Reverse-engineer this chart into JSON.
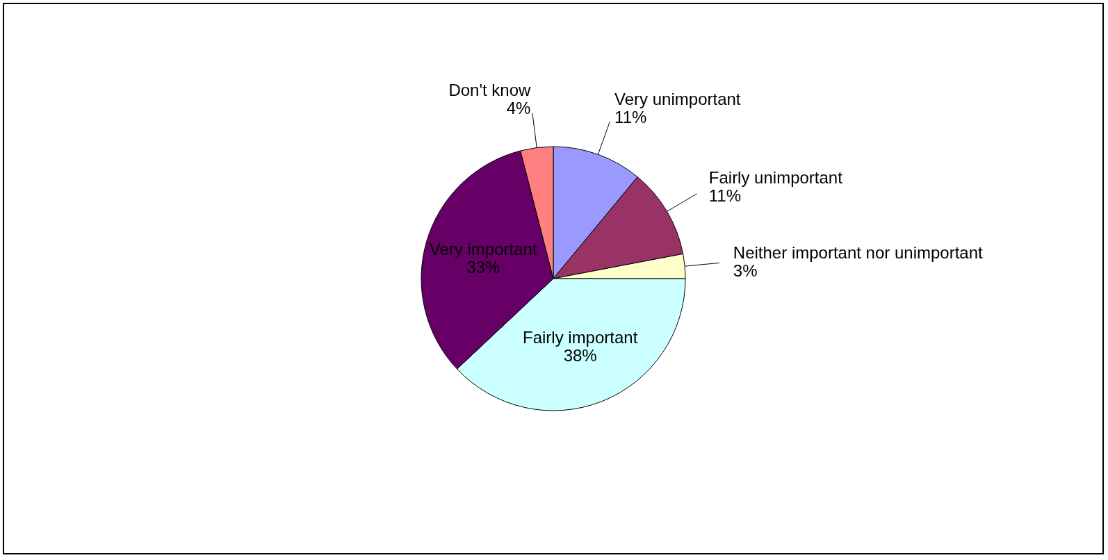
{
  "chart_data": {
    "type": "pie",
    "categories": [
      "Very unimportant",
      "Fairly unimportant",
      "Neither important nor unimportant",
      "Fairly important",
      "Very important",
      "Don't know"
    ],
    "values": [
      11,
      11,
      3,
      38,
      33,
      4
    ],
    "value_labels": [
      "11%",
      "11%",
      "3%",
      "38%",
      "33%",
      "4%"
    ],
    "colors": [
      "#9999ff",
      "#993366",
      "#ffffcc",
      "#ccffff",
      "#660066",
      "#ff8080"
    ]
  }
}
